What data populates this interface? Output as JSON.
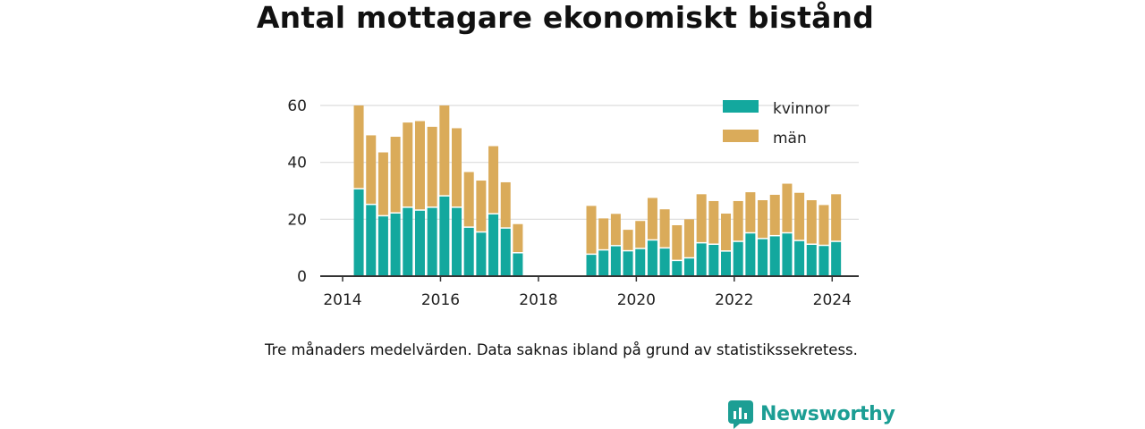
{
  "title": "Antal mottagare ekonomiskt bistånd",
  "caption": "Tre månaders medelvärden. Data saknas ibland på grund av statistikssekretess.",
  "brand": {
    "name": "Newsworthy",
    "icon": "newsworthy-logo-icon"
  },
  "colors": {
    "kvinnor": "#13a89e",
    "man": "#daab5a",
    "grid": "#dcdcdc",
    "axis": "#333333",
    "brand": "#1c9e94"
  },
  "chart_data": {
    "type": "bar",
    "stacked": true,
    "x_ticks": [
      "2014",
      "2016",
      "2018",
      "2020",
      "2022",
      "2024"
    ],
    "y_ticks": [
      "0",
      "20",
      "40",
      "60"
    ],
    "ylim": [
      0,
      60
    ],
    "xlim": [
      2014.0,
      2025.0
    ],
    "grid": true,
    "legend_position": "top-right",
    "series": [
      {
        "name": "kvinnor",
        "color": "#13a89e",
        "values": [
          30.5,
          25,
          21,
          22,
          24,
          23,
          24,
          28,
          24,
          17,
          15.3,
          21.7,
          16.7,
          8,
          7.5,
          9,
          10.5,
          8.7,
          9.5,
          12.5,
          9.7,
          5.3,
          6.2,
          11.5,
          11,
          8.6,
          12,
          15,
          13,
          14,
          15,
          12.3,
          11,
          10.6,
          12
        ]
      },
      {
        "name": "män",
        "color": "#daab5a",
        "values": [
          29.5,
          24.5,
          22.5,
          27,
          30,
          31.5,
          28.5,
          32,
          28,
          19.6,
          18.3,
          24,
          16.3,
          10.3,
          17.2,
          11.3,
          11.4,
          7.6,
          9.9,
          15,
          13.8,
          12.6,
          13.8,
          17.3,
          15.4,
          13.4,
          14.4,
          14.5,
          13.7,
          14.6,
          17.5,
          17,
          15.7,
          14.4,
          16.8
        ]
      }
    ],
    "x": [
      2014.33,
      2014.58,
      2014.83,
      2015.08,
      2015.33,
      2015.58,
      2015.83,
      2016.08,
      2016.33,
      2016.58,
      2016.83,
      2017.08,
      2017.33,
      2017.58,
      2019.08,
      2019.33,
      2019.58,
      2019.83,
      2020.08,
      2020.33,
      2020.58,
      2020.83,
      2021.08,
      2021.33,
      2021.58,
      2021.83,
      2022.08,
      2022.33,
      2022.58,
      2022.83,
      2023.08,
      2023.33,
      2023.58,
      2023.83,
      2024.08
    ]
  }
}
